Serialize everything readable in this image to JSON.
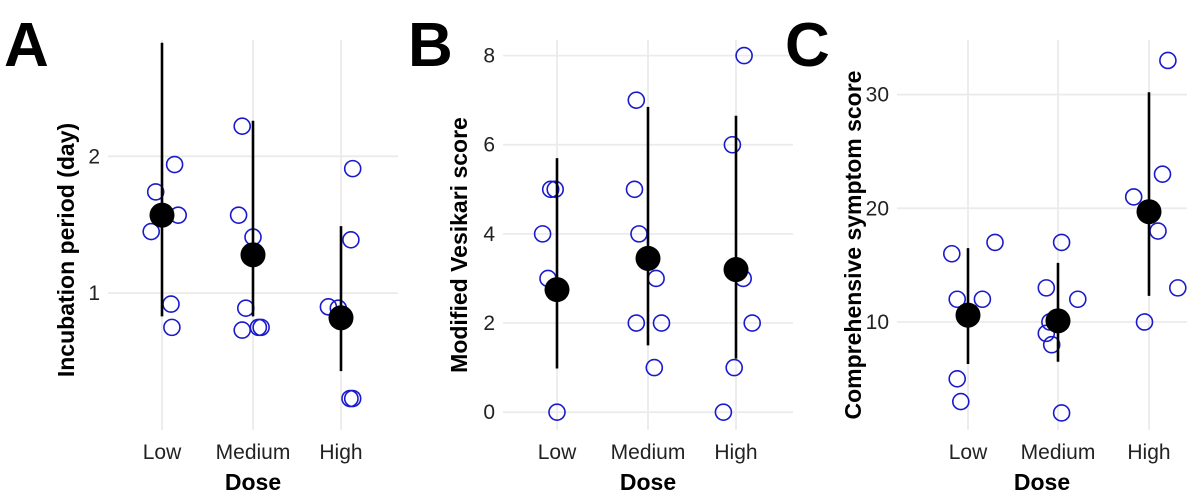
{
  "chart_data": [
    {
      "panel": "A",
      "type": "scatter",
      "xlabel": "Dose",
      "ylabel": "Incubation period (day)",
      "categories": [
        "Low",
        "Medium",
        "High"
      ],
      "ylim": [
        0.0,
        2.85
      ],
      "yticks": [
        1,
        2
      ],
      "grid": true,
      "colors": {
        "points": "#1a1acc",
        "summary": "#000000"
      },
      "groups": [
        {
          "category": "Low",
          "mean": 1.57,
          "lower": 0.83,
          "upper": 2.83,
          "points": [
            {
              "dx": -0.12,
              "y": 1.45
            },
            {
              "dx": -0.07,
              "y": 1.74
            },
            {
              "dx": 0.14,
              "y": 1.94
            },
            {
              "dx": 0.18,
              "y": 1.57
            },
            {
              "dx": 0.1,
              "y": 0.92
            },
            {
              "dx": 0.11,
              "y": 0.75
            }
          ]
        },
        {
          "category": "Medium",
          "mean": 1.28,
          "lower": 0.83,
          "upper": 2.26,
          "points": [
            {
              "dx": -0.16,
              "y": 1.57
            },
            {
              "dx": -0.12,
              "y": 2.22
            },
            {
              "dx": 0.0,
              "y": 1.41
            },
            {
              "dx": -0.08,
              "y": 0.89
            },
            {
              "dx": -0.12,
              "y": 0.73
            },
            {
              "dx": 0.06,
              "y": 0.75
            },
            {
              "dx": 0.09,
              "y": 0.75
            }
          ]
        },
        {
          "category": "High",
          "mean": 0.82,
          "lower": 0.43,
          "upper": 1.49,
          "points": [
            {
              "dx": -0.14,
              "y": 0.9
            },
            {
              "dx": -0.03,
              "y": 0.89
            },
            {
              "dx": 0.13,
              "y": 1.91
            },
            {
              "dx": 0.11,
              "y": 1.39
            },
            {
              "dx": 0.1,
              "y": 0.23
            },
            {
              "dx": 0.13,
              "y": 0.23
            }
          ]
        }
      ]
    },
    {
      "panel": "B",
      "type": "scatter",
      "xlabel": "Dose",
      "ylabel": "Modified Vesikari score",
      "categories": [
        "Low",
        "Medium",
        "High"
      ],
      "ylim": [
        -0.4,
        8.35
      ],
      "yticks": [
        0,
        2,
        4,
        6,
        8
      ],
      "grid": true,
      "colors": {
        "points": "#1a1acc",
        "summary": "#000000"
      },
      "groups": [
        {
          "category": "Low",
          "mean": 2.75,
          "lower": 0.98,
          "upper": 5.7,
          "points": [
            {
              "dx": -0.16,
              "y": 4.0
            },
            {
              "dx": -0.07,
              "y": 5.0
            },
            {
              "dx": -0.02,
              "y": 5.0
            },
            {
              "dx": -0.1,
              "y": 3.0
            },
            {
              "dx": 0.0,
              "y": 0.0
            }
          ]
        },
        {
          "category": "Medium",
          "mean": 3.45,
          "lower": 1.5,
          "upper": 6.85,
          "points": [
            {
              "dx": -0.13,
              "y": 7.0
            },
            {
              "dx": -0.15,
              "y": 5.0
            },
            {
              "dx": -0.1,
              "y": 4.0
            },
            {
              "dx": 0.09,
              "y": 3.0
            },
            {
              "dx": -0.13,
              "y": 2.0
            },
            {
              "dx": 0.15,
              "y": 2.0
            },
            {
              "dx": 0.07,
              "y": 1.0
            }
          ]
        },
        {
          "category": "High",
          "mean": 3.2,
          "lower": 1.2,
          "upper": 6.65,
          "points": [
            {
              "dx": 0.09,
              "y": 8.0
            },
            {
              "dx": -0.04,
              "y": 6.0
            },
            {
              "dx": 0.08,
              "y": 3.0
            },
            {
              "dx": 0.18,
              "y": 2.0
            },
            {
              "dx": -0.02,
              "y": 1.0
            },
            {
              "dx": -0.14,
              "y": 0.0
            }
          ]
        }
      ]
    },
    {
      "panel": "C",
      "type": "scatter",
      "xlabel": "Dose",
      "ylabel": "Comprehensive symptom score",
      "categories": [
        "Low",
        "Medium",
        "High"
      ],
      "ylim": [
        0.5,
        34.8
      ],
      "yticks": [
        10,
        20,
        30
      ],
      "grid": true,
      "colors": {
        "points": "#1a1acc",
        "summary": "#000000"
      },
      "groups": [
        {
          "category": "Low",
          "mean": 10.6,
          "lower": 6.3,
          "upper": 16.5,
          "points": [
            {
              "dx": -0.18,
              "y": 16.0
            },
            {
              "dx": 0.3,
              "y": 17.0
            },
            {
              "dx": -0.12,
              "y": 12.0
            },
            {
              "dx": 0.16,
              "y": 12.0
            },
            {
              "dx": -0.12,
              "y": 5.0
            },
            {
              "dx": -0.08,
              "y": 3.0
            }
          ]
        },
        {
          "category": "Medium",
          "mean": 10.1,
          "lower": 6.5,
          "upper": 15.2,
          "points": [
            {
              "dx": 0.04,
              "y": 17.0
            },
            {
              "dx": -0.13,
              "y": 13.0
            },
            {
              "dx": 0.22,
              "y": 12.0
            },
            {
              "dx": -0.09,
              "y": 10.0
            },
            {
              "dx": -0.13,
              "y": 9.0
            },
            {
              "dx": -0.07,
              "y": 8.0
            },
            {
              "dx": 0.04,
              "y": 2.0
            }
          ]
        },
        {
          "category": "High",
          "mean": 19.7,
          "lower": 12.3,
          "upper": 30.2,
          "points": [
            {
              "dx": 0.21,
              "y": 33.0
            },
            {
              "dx": 0.15,
              "y": 23.0
            },
            {
              "dx": -0.17,
              "y": 21.0
            },
            {
              "dx": 0.1,
              "y": 18.0
            },
            {
              "dx": 0.32,
              "y": 13.0
            },
            {
              "dx": -0.05,
              "y": 10.0
            }
          ]
        }
      ]
    }
  ]
}
